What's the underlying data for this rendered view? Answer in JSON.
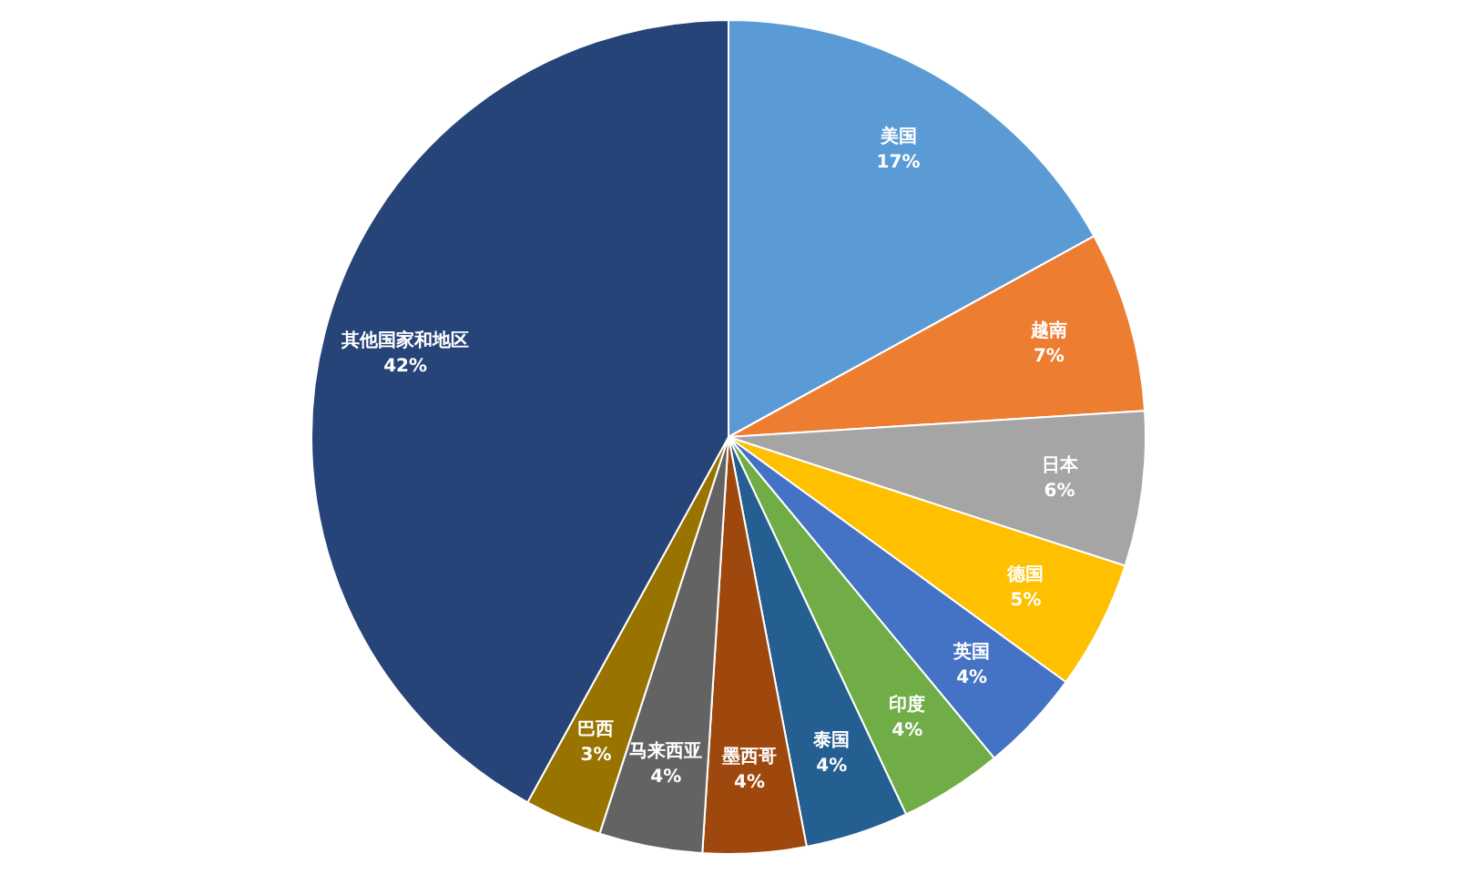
{
  "chart_data": {
    "type": "pie",
    "categories": [
      "美国",
      "越南",
      "日本",
      "德国",
      "英国",
      "印度",
      "泰国",
      "墨西哥",
      "马来西亚",
      "巴西",
      "其他国家和地区"
    ],
    "values": [
      17,
      7,
      6,
      5,
      4,
      4,
      4,
      4,
      4,
      3,
      42
    ],
    "colors": [
      "#5b9bd5",
      "#ed7d31",
      "#a5a5a5",
      "#ffc000",
      "#4472c4",
      "#70ad47",
      "#255e91",
      "#9e480e",
      "#636363",
      "#997300",
      "#264478"
    ],
    "value_labels": [
      "17%",
      "7%",
      "6%",
      "5%",
      "4%",
      "4%",
      "4%",
      "4%",
      "4%",
      "3%",
      "42%"
    ],
    "legend": false
  }
}
